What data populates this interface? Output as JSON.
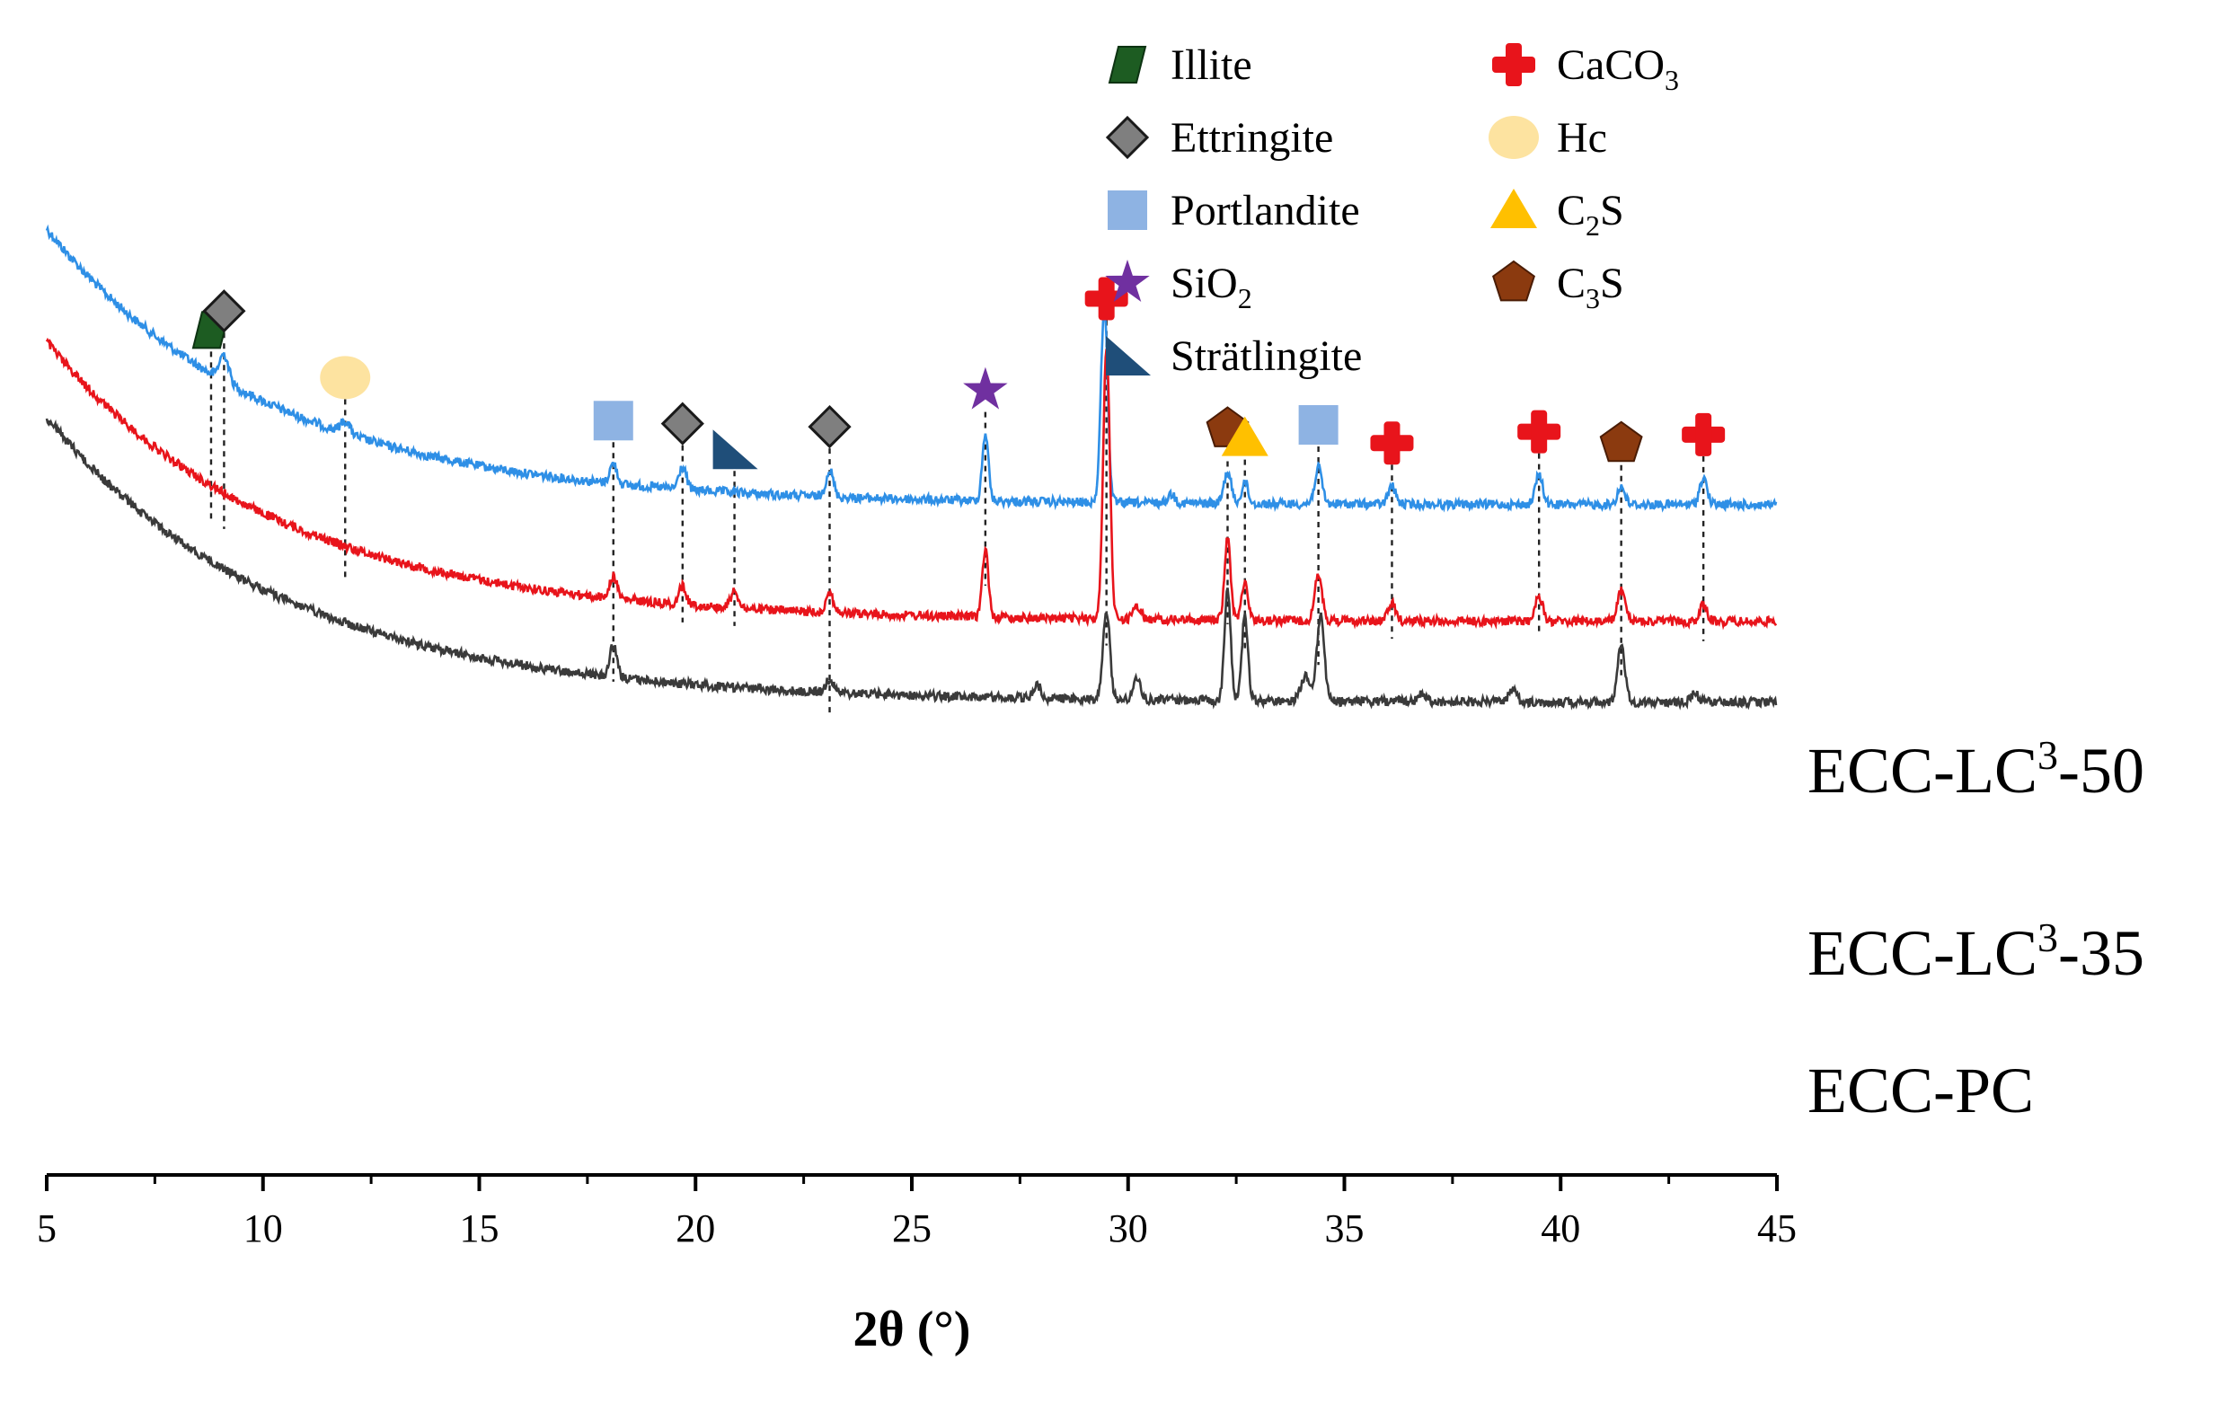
{
  "chart_data": {
    "type": "line",
    "title": "",
    "xlabel": "2θ (°)",
    "ylabel": "",
    "xlim": [
      5,
      45
    ],
    "xticks": [
      "5",
      "10",
      "15",
      "20",
      "25",
      "30",
      "35",
      "40",
      "45"
    ],
    "grid": false,
    "series": [
      {
        "name": "ECC-LC³-50",
        "label_main": "ECC-LC",
        "label_sup": "3",
        "label_tail": "-50",
        "color": "#2e8fe6",
        "base": 562,
        "noise": 5,
        "bg": {
          "a": 1570,
          "b": 0.44,
          "top": 255
        },
        "peaks": [
          [
            9.1,
            30,
            0.15
          ],
          [
            11.9,
            14,
            0.15
          ],
          [
            18.1,
            22,
            0.12
          ],
          [
            19.7,
            25,
            0.12
          ],
          [
            23.1,
            30,
            0.12
          ],
          [
            26.7,
            75,
            0.1
          ],
          [
            29.45,
            220,
            0.11
          ],
          [
            31,
            10,
            0.12
          ],
          [
            32.3,
            35,
            0.12
          ],
          [
            32.7,
            25,
            0.1
          ],
          [
            34.4,
            40,
            0.12
          ],
          [
            36.1,
            20,
            0.12
          ],
          [
            39.5,
            33,
            0.12
          ],
          [
            41.4,
            20,
            0.12
          ],
          [
            43.3,
            30,
            0.12
          ]
        ]
      },
      {
        "name": "ECC-LC³-35",
        "label_main": "ECC-LC",
        "label_sup": "3",
        "label_tail": "-35",
        "color": "#e8141b",
        "base": 692,
        "noise": 5,
        "bg": {
          "a": 1600,
          "b": 0.45,
          "top": 380
        },
        "peaks": [
          [
            18.1,
            25,
            0.12
          ],
          [
            19.7,
            20,
            0.12
          ],
          [
            20.9,
            20,
            0.12
          ],
          [
            23.1,
            22,
            0.12
          ],
          [
            26.7,
            75,
            0.1
          ],
          [
            29.5,
            300,
            0.11
          ],
          [
            30.2,
            15,
            0.12
          ],
          [
            32.3,
            90,
            0.1
          ],
          [
            32.7,
            45,
            0.1
          ],
          [
            34.4,
            50,
            0.12
          ],
          [
            36.1,
            20,
            0.12
          ],
          [
            39.5,
            28,
            0.12
          ],
          [
            41.4,
            35,
            0.12
          ],
          [
            43.3,
            18,
            0.12
          ]
        ]
      },
      {
        "name": "ECC-PC",
        "label_main": "ECC-PC",
        "label_sup": "",
        "label_tail": "",
        "color": "#3a3a3a",
        "base": 782,
        "noise": 5,
        "bg": {
          "a": 1700,
          "b": 0.46,
          "top": 465
        },
        "peaks": [
          [
            18.1,
            35,
            0.12
          ],
          [
            23.1,
            15,
            0.12
          ],
          [
            27.9,
            15,
            0.12
          ],
          [
            29.5,
            100,
            0.11
          ],
          [
            30.2,
            25,
            0.12
          ],
          [
            32.3,
            125,
            0.1
          ],
          [
            32.7,
            95,
            0.1
          ],
          [
            34.1,
            28,
            0.15
          ],
          [
            34.45,
            95,
            0.12
          ],
          [
            36.8,
            10,
            0.12
          ],
          [
            38.9,
            15,
            0.12
          ],
          [
            41.4,
            65,
            0.12
          ],
          [
            43.1,
            10,
            0.12
          ]
        ]
      }
    ],
    "legend": [
      {
        "key": "illite",
        "label": "Illite",
        "sub": "",
        "tail": "",
        "marker": "parallelogram",
        "color": "#1d5c22",
        "column": "left",
        "row": 0
      },
      {
        "key": "ettringite",
        "label": "Ettringite",
        "sub": "",
        "tail": "",
        "marker": "diamond",
        "color": "#7f7f7f",
        "column": "left",
        "row": 1
      },
      {
        "key": "portlandite",
        "label": "Portlandite",
        "sub": "",
        "tail": "",
        "marker": "square",
        "color": "#8eb3e3",
        "column": "left",
        "row": 2
      },
      {
        "key": "sio2",
        "label": "SiO",
        "sub": "2",
        "tail": "",
        "marker": "star",
        "color": "#7030a0",
        "column": "left",
        "row": 3
      },
      {
        "key": "stratlingite",
        "label": "Strätlingite",
        "sub": "",
        "tail": "",
        "marker": "triangle-right",
        "color": "#1f4e79",
        "column": "left",
        "row": 4
      },
      {
        "key": "caco3",
        "label": "CaCO",
        "sub": "3",
        "tail": "",
        "marker": "cross",
        "color": "#e8141b",
        "column": "right",
        "row": 0
      },
      {
        "key": "hc",
        "label": "Hc",
        "sub": "",
        "tail": "",
        "marker": "circle",
        "color": "#fde3a0",
        "column": "right",
        "row": 1
      },
      {
        "key": "c2s",
        "label": "C",
        "sub": "2",
        "tail": "S",
        "marker": "triangle",
        "color": "#ffc000",
        "column": "right",
        "row": 2
      },
      {
        "key": "c3s",
        "label": "C",
        "sub": "3",
        "tail": "S",
        "marker": "pentagon",
        "color": "#8b3a0f",
        "column": "right",
        "row": 3
      }
    ],
    "annotations": [
      {
        "phase": "illite",
        "two_theta": 8.8,
        "line_to": "ECC-LC³-35"
      },
      {
        "phase": "ettringite",
        "two_theta": 9.1,
        "line_to": "ECC-LC³-35"
      },
      {
        "phase": "hc",
        "two_theta": 11.9,
        "line_to": "ECC-LC³-35"
      },
      {
        "phase": "portlandite",
        "two_theta": 18.1,
        "line_to": "ECC-PC"
      },
      {
        "phase": "ettringite",
        "two_theta": 19.7,
        "line_to": "ECC-LC³-35"
      },
      {
        "phase": "stratlingite",
        "two_theta": 20.9,
        "line_to": "ECC-LC³-35"
      },
      {
        "phase": "ettringite",
        "two_theta": 23.1,
        "line_to": "ECC-PC"
      },
      {
        "phase": "sio2",
        "two_theta": 26.7,
        "line_to": "ECC-LC³-35"
      },
      {
        "phase": "caco3",
        "two_theta": 29.5,
        "line_to": "ECC-PC"
      },
      {
        "phase": "c3s",
        "two_theta": 32.3,
        "line_to": "ECC-PC"
      },
      {
        "phase": "c2s",
        "two_theta": 32.7,
        "line_to": "ECC-PC"
      },
      {
        "phase": "portlandite",
        "two_theta": 34.4,
        "line_to": "ECC-PC"
      },
      {
        "phase": "caco3",
        "two_theta": 36.1,
        "line_to": "ECC-LC³-35"
      },
      {
        "phase": "caco3",
        "two_theta": 39.5,
        "line_to": "ECC-LC³-35"
      },
      {
        "phase": "c3s",
        "two_theta": 41.4,
        "line_to": "ECC-PC"
      },
      {
        "phase": "caco3",
        "two_theta": 43.3,
        "line_to": "ECC-LC³-35"
      }
    ]
  }
}
